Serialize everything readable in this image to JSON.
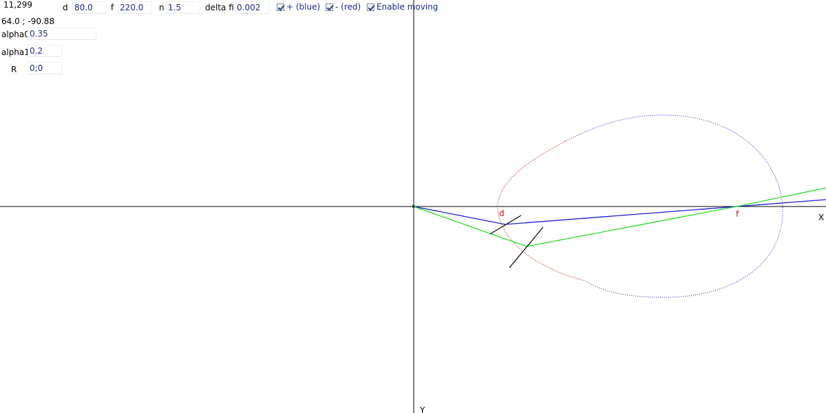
{
  "status": {
    "coords": "11,299",
    "world_coords": "64.0 ; -90.88"
  },
  "params": {
    "d_label": "d",
    "d_value": "80.0",
    "f_label": "f",
    "f_value": "220.0",
    "n_label": "n",
    "n_value": "1.5",
    "delta_fi_label": "delta fi",
    "delta_fi_value": "0.002",
    "alpha0_label": "alpha0",
    "alpha0_value": "0.35",
    "alpha1_label": "alpha1",
    "alpha1_value": "0.2",
    "r_label": "R",
    "r_value": "0;0"
  },
  "toggles": {
    "plus_label": "+ (blue)",
    "plus_checked": true,
    "minus_label": "- (red)",
    "minus_checked": true,
    "moving_label": "Enable moving",
    "moving_checked": true
  },
  "plot": {
    "x_axis_label": "X",
    "y_axis_label": "Y",
    "d_marker_label": "d",
    "f_marker_label": "f",
    "colors": {
      "axes": "#000000",
      "plus_curve": "#1010d0",
      "minus_curve": "#d01010",
      "ray_blue": "#1a1ad8",
      "ray_green": "#22dd22",
      "marker_text": "#cc1111"
    }
  }
}
